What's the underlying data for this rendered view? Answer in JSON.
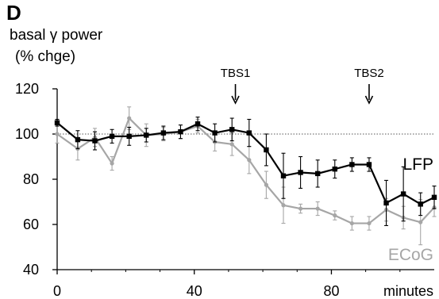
{
  "panel_letter": "D",
  "chart_data": {
    "type": "line",
    "ylabel_lines": [
      "basal γ power",
      "(% chge)"
    ],
    "xlabel": "minutes",
    "xlim": [
      0,
      110
    ],
    "ylim": [
      40,
      120
    ],
    "x_ticks": [
      0,
      40,
      80
    ],
    "y_ticks": [
      40,
      60,
      80,
      100,
      120
    ],
    "reference_line": 100,
    "grid": false,
    "annotations": [
      {
        "text": "TBS1",
        "x": 52
      },
      {
        "text": "TBS2",
        "x": 91
      }
    ],
    "series": [
      {
        "name": "LFP",
        "color": "#000000",
        "marker": "square",
        "x": [
          0,
          6,
          11,
          16,
          21,
          26,
          31,
          36,
          41,
          46,
          51,
          56,
          61,
          66,
          71,
          76,
          81,
          86,
          91,
          96,
          101,
          106,
          110
        ],
        "y": [
          105,
          97.5,
          97,
          99,
          99,
          99.5,
          100.5,
          101,
          104.5,
          100.5,
          102,
          100.5,
          93,
          81.5,
          83,
          82.5,
          84.5,
          86.5,
          86.5,
          69.5,
          73.5,
          69,
          72
        ],
        "err": [
          1.5,
          4,
          4,
          3,
          4,
          3,
          3,
          3,
          3,
          4,
          5,
          6,
          7,
          10,
          7,
          6,
          4,
          3,
          3,
          10,
          12,
          5,
          5
        ]
      },
      {
        "name": "ECoG",
        "color": "#a6a6a6",
        "marker": "circle",
        "x": [
          0,
          6,
          11,
          16,
          21,
          26,
          31,
          36,
          41,
          46,
          51,
          56,
          61,
          66,
          71,
          76,
          81,
          86,
          91,
          96,
          101,
          106,
          110
        ],
        "y": [
          100,
          93.5,
          98.5,
          87,
          107,
          99.5,
          100,
          101,
          103.5,
          96.5,
          95.5,
          88.5,
          77.5,
          68.5,
          67,
          67,
          64,
          60.5,
          60.5,
          66.5,
          63,
          61,
          67.5
        ],
        "err": [
          4,
          5,
          4,
          3,
          5,
          5,
          3,
          3,
          3,
          4,
          5,
          6,
          6,
          8,
          2,
          3,
          2,
          3,
          3,
          5,
          5,
          10,
          4
        ]
      }
    ]
  }
}
